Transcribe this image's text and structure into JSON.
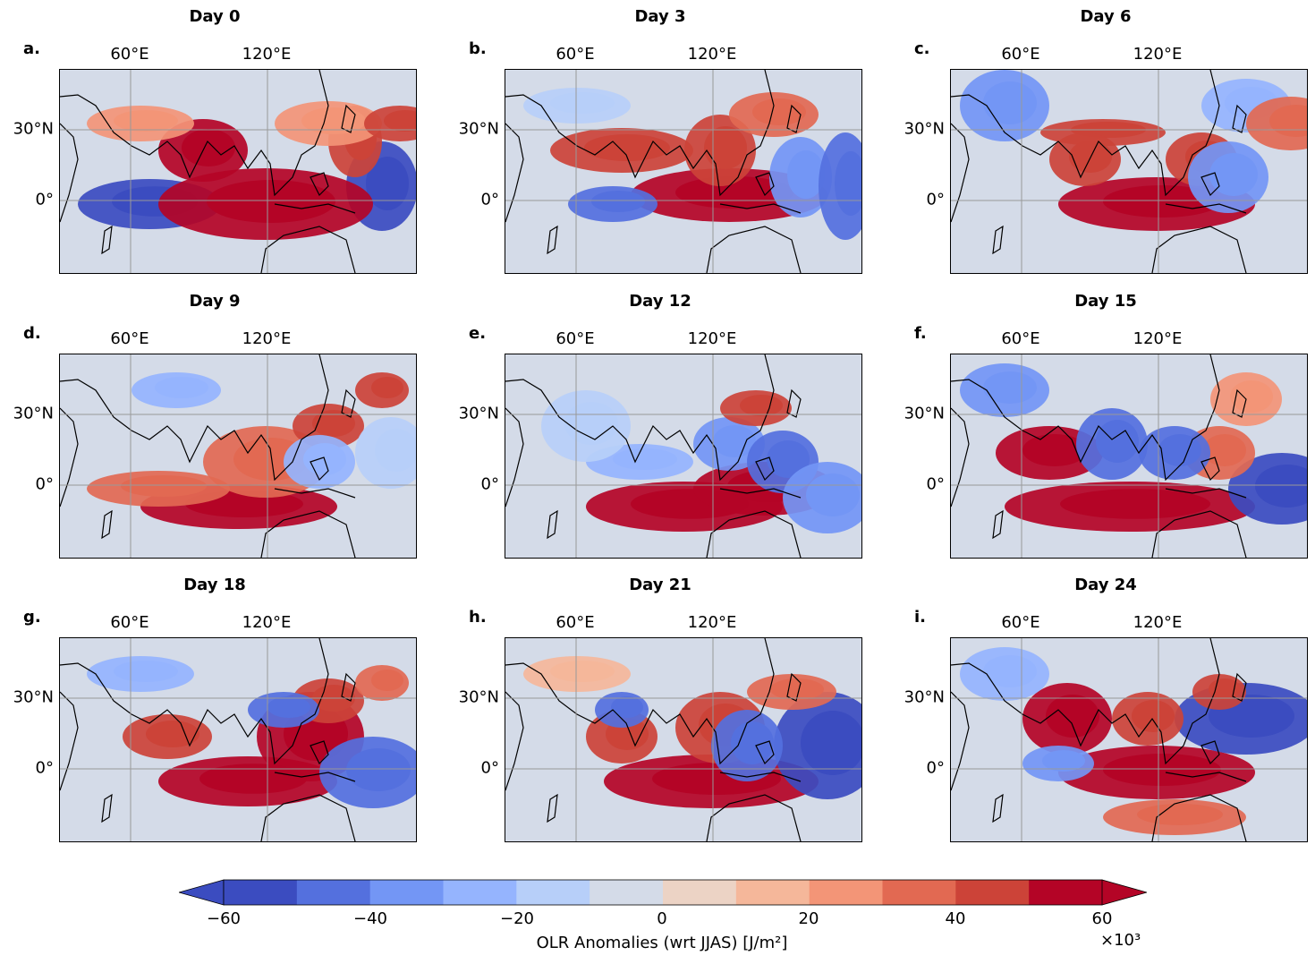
{
  "figure": {
    "colorbar": {
      "label": "OLR Anomalies (wrt JJAS) [J/m²]",
      "multiplier": "×10³",
      "ticks": [
        "−60",
        "−40",
        "−20",
        "0",
        "20",
        "40",
        "60"
      ],
      "levels": [
        -60,
        -50,
        -40,
        -30,
        -20,
        -10,
        0,
        10,
        20,
        30,
        40,
        50,
        60
      ],
      "colors": [
        "#3b4cc0",
        "#5470de",
        "#7396f5",
        "#95b4fe",
        "#b7cff9",
        "#d4dbe8",
        "#ecd3c5",
        "#f5b79a",
        "#f39577",
        "#e26952",
        "#cc4338",
        "#b40426"
      ],
      "extend": "both"
    },
    "axis_labels": {
      "lon": [
        "60°E",
        "120°E"
      ],
      "lat": [
        "30°N",
        "0°"
      ]
    },
    "panels": [
      {
        "letter": "a.",
        "title": "Day 0"
      },
      {
        "letter": "b.",
        "title": "Day 3"
      },
      {
        "letter": "c.",
        "title": "Day 6"
      },
      {
        "letter": "d.",
        "title": "Day 9"
      },
      {
        "letter": "e.",
        "title": "Day 12"
      },
      {
        "letter": "f.",
        "title": "Day 15"
      },
      {
        "letter": "g.",
        "title": "Day 18"
      },
      {
        "letter": "h.",
        "title": "Day 21"
      },
      {
        "letter": "i.",
        "title": "Day 24"
      }
    ]
  }
}
